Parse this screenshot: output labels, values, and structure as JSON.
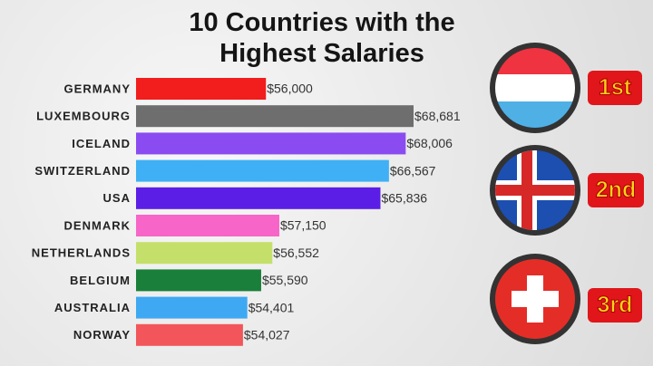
{
  "chart_data": {
    "type": "bar",
    "orientation": "horizontal",
    "title": "10 Countries with the Highest Salaries",
    "categories": [
      "GERMANY",
      "LUXEMBOURG",
      "ICELAND",
      "SWITZERLAND",
      "USA",
      "DENMARK",
      "NETHERLANDS",
      "BELGIUM",
      "AUSTRALIA",
      "NORWAY"
    ],
    "values": [
      56000,
      68681,
      68006,
      66567,
      65836,
      57150,
      56552,
      55590,
      54401,
      54027
    ],
    "value_labels": [
      "$56,000",
      "$68,681",
      "$68,006",
      "$66,567",
      "$65,836",
      "$57,150",
      "$56,552",
      "$55,590",
      "$54,401",
      "$54,027"
    ],
    "colors": [
      "#f21d1d",
      "#6e6e6e",
      "#8a4cf0",
      "#3fb0f5",
      "#5b1ee6",
      "#f765c8",
      "#c4e06a",
      "#1a7f3a",
      "#3ea9f2",
      "#f2565a"
    ]
  },
  "badges": [
    "1st",
    "2nd",
    "3rd"
  ]
}
